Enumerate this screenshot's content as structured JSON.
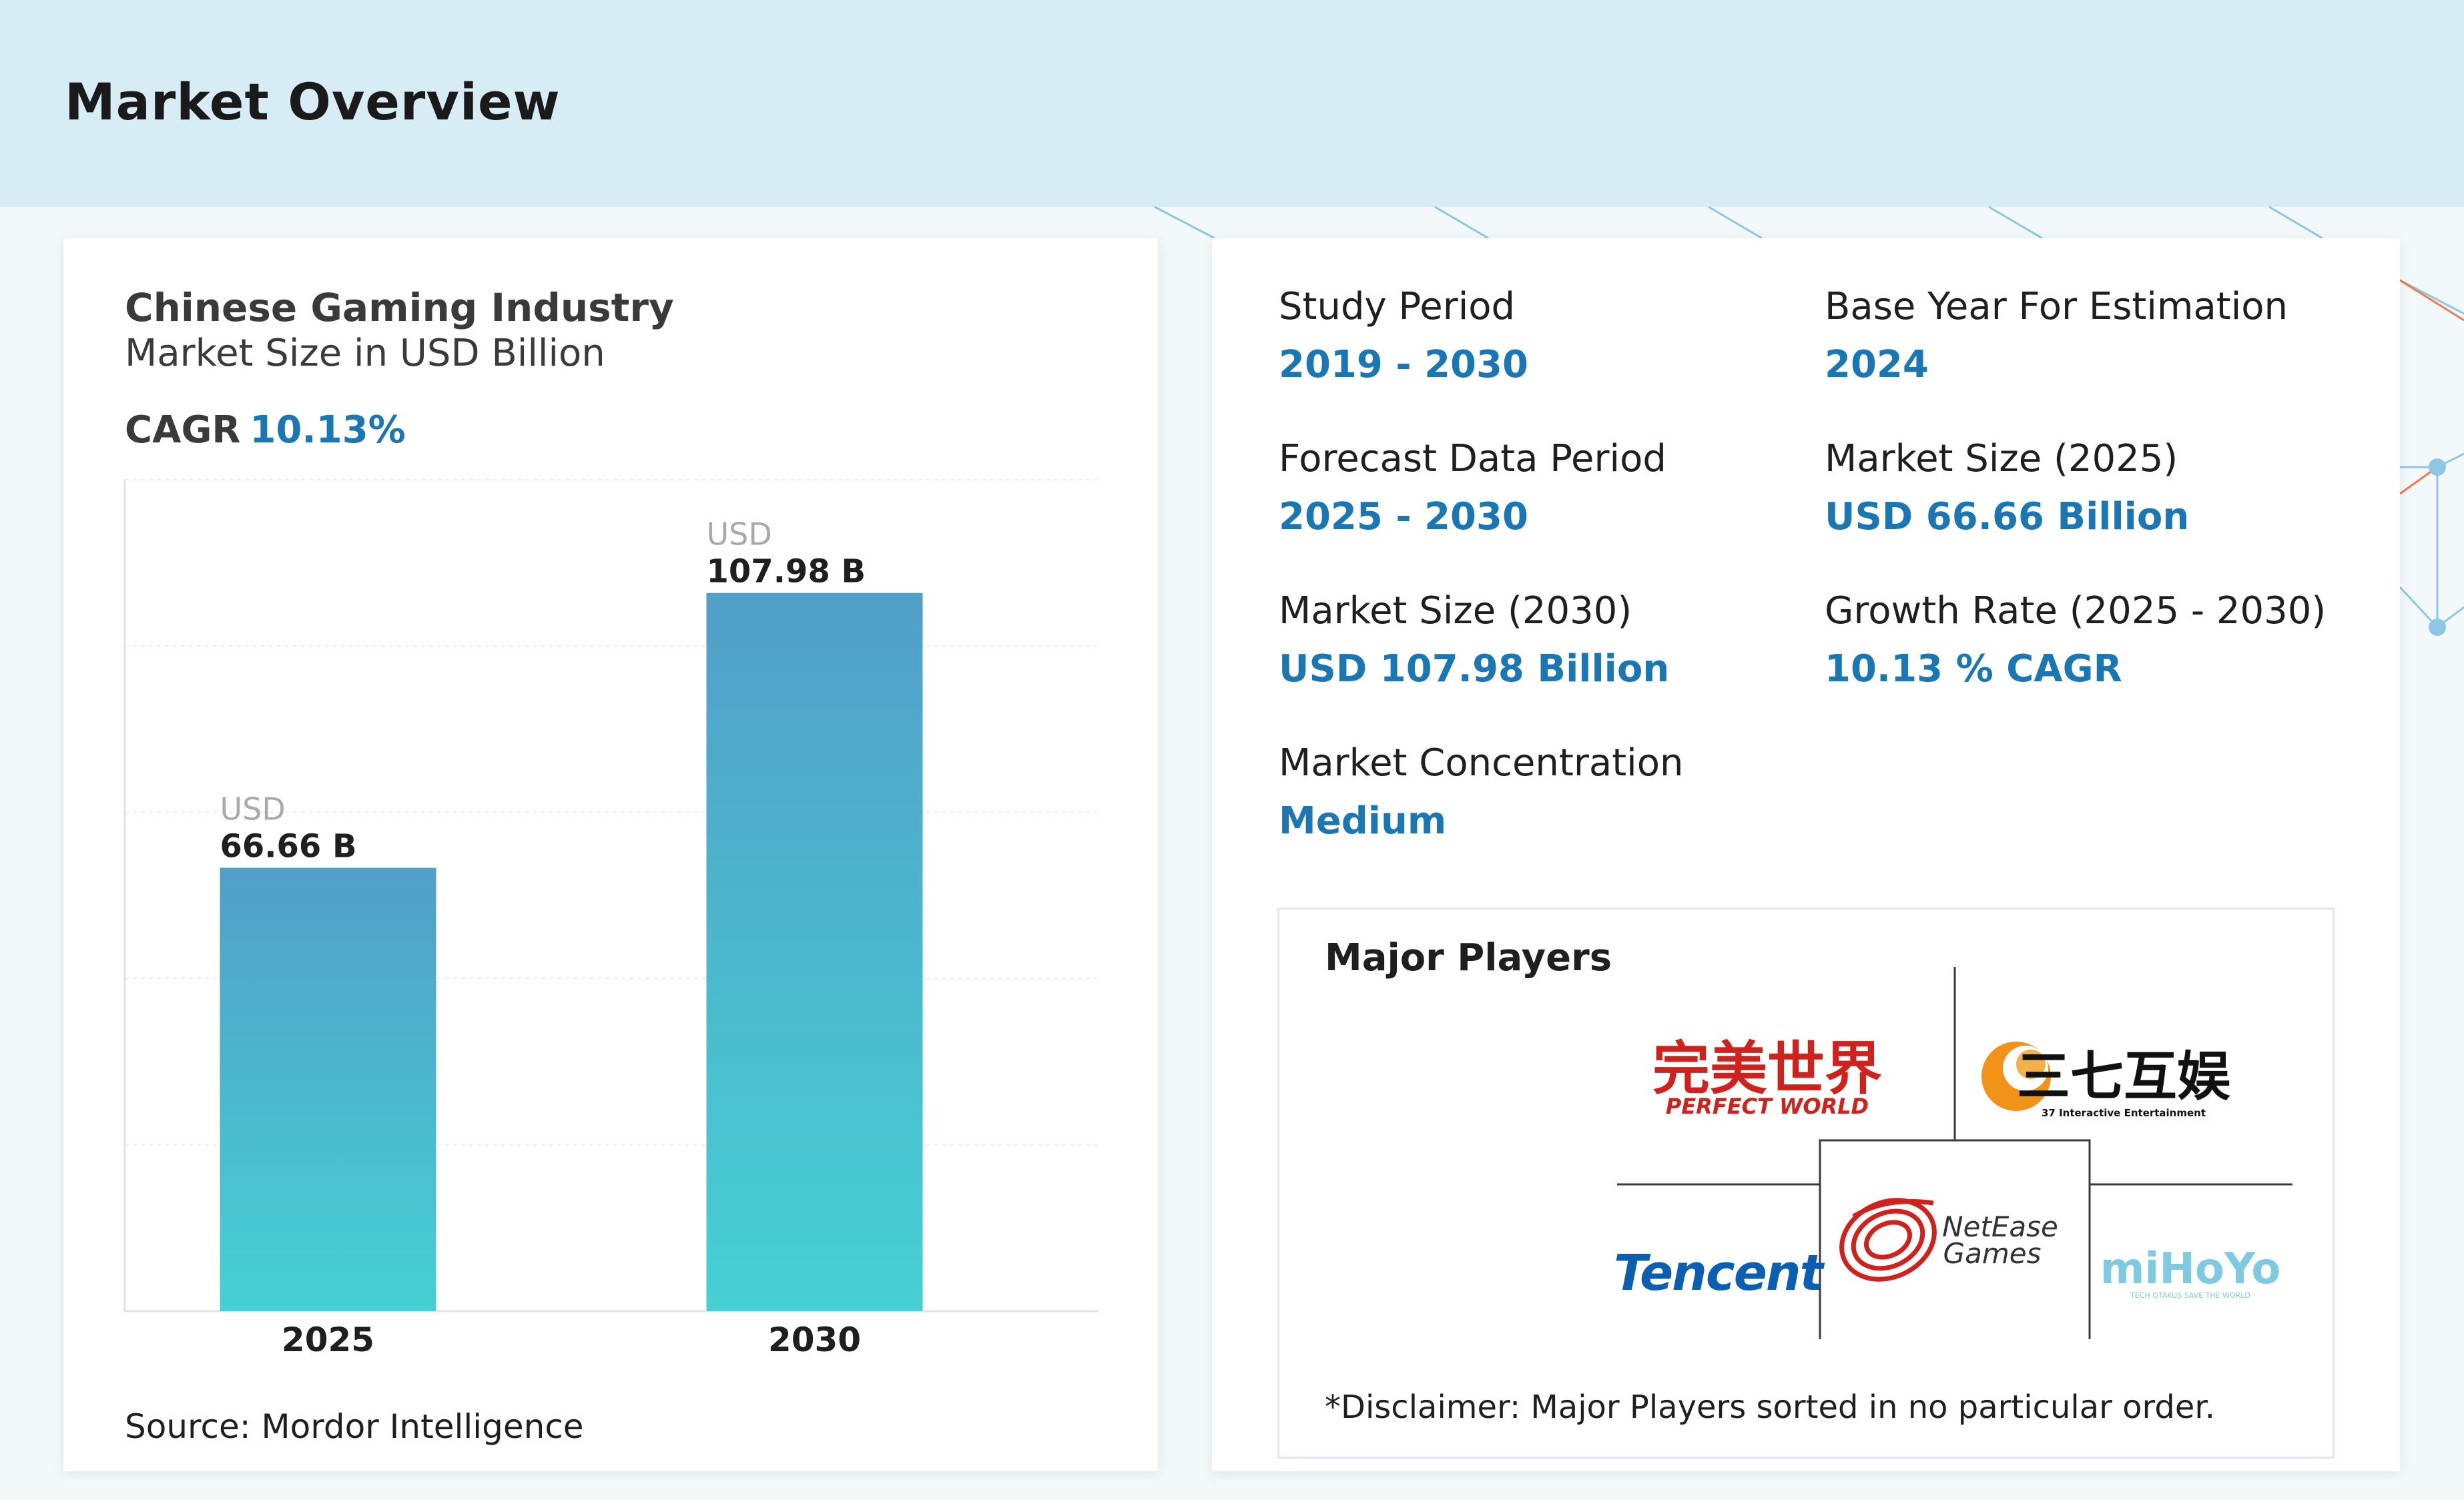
{
  "page": {
    "title": "Market Overview"
  },
  "colors": {
    "accent": "#1b77b3",
    "bar_top": "#529fc8",
    "bar_bottom": "#46d0d3",
    "header_bg": "#d8ecf5",
    "deco_blue": "#8cc8e6",
    "deco_orange": "#f07a4a"
  },
  "chart": {
    "title": "Chinese Gaming Industry",
    "subtitle": "Market Size in USD Billion",
    "cagr_label": "CAGR",
    "cagr_value": "10.13%",
    "source": "Source: Mordor Intelligence"
  },
  "chart_data": {
    "type": "bar",
    "title": "Chinese Gaming Industry",
    "subtitle": "Market Size in USD Billion",
    "categories": [
      "2025",
      "2030"
    ],
    "values": [
      66.66,
      107.98
    ],
    "data_labels": [
      {
        "unit": "USD",
        "value": "66.66 B"
      },
      {
        "unit": "USD",
        "value": "107.98 B"
      }
    ],
    "xlabel": "",
    "ylabel": "",
    "ylim": [
      0,
      125
    ],
    "grid": true,
    "legend": "none"
  },
  "stats": [
    {
      "label": "Study Period",
      "value": "2019 - 2030"
    },
    {
      "label": "Base Year For Estimation",
      "value": "2024"
    },
    {
      "label": "Forecast Data Period",
      "value": "2025 - 2030"
    },
    {
      "label": "Market Size (2025)",
      "value": "USD 66.66 Billion"
    },
    {
      "label": "Market Size (2030)",
      "value": "USD 107.98 Billion"
    },
    {
      "label": "Growth Rate (2025 - 2030)",
      "value": "10.13 % CAGR"
    },
    {
      "label": "Market Concentration",
      "value": "Medium"
    }
  ],
  "players": {
    "title": "Major Players",
    "disclaimer": "*Disclaimer: Major Players sorted in no particular order.",
    "logos": [
      {
        "name": "perfect-world",
        "cn": "完美世界",
        "en": "PERFECT WORLD",
        "color": "#d0211c"
      },
      {
        "name": "37-interactive",
        "cn": "三七互娱",
        "en": "37 Interactive Entertainment",
        "color": "#111111",
        "mark_color": "#f29218"
      },
      {
        "name": "tencent",
        "en": "Tencent",
        "color": "#0c5fb0"
      },
      {
        "name": "netease",
        "en1": "NetEase",
        "en2": "Games",
        "color": "#d0211c"
      },
      {
        "name": "mihoyo",
        "en": "miHoYo",
        "tag": "TECH OTAKUS SAVE THE WORLD",
        "color": "#7fc9e3"
      }
    ]
  }
}
